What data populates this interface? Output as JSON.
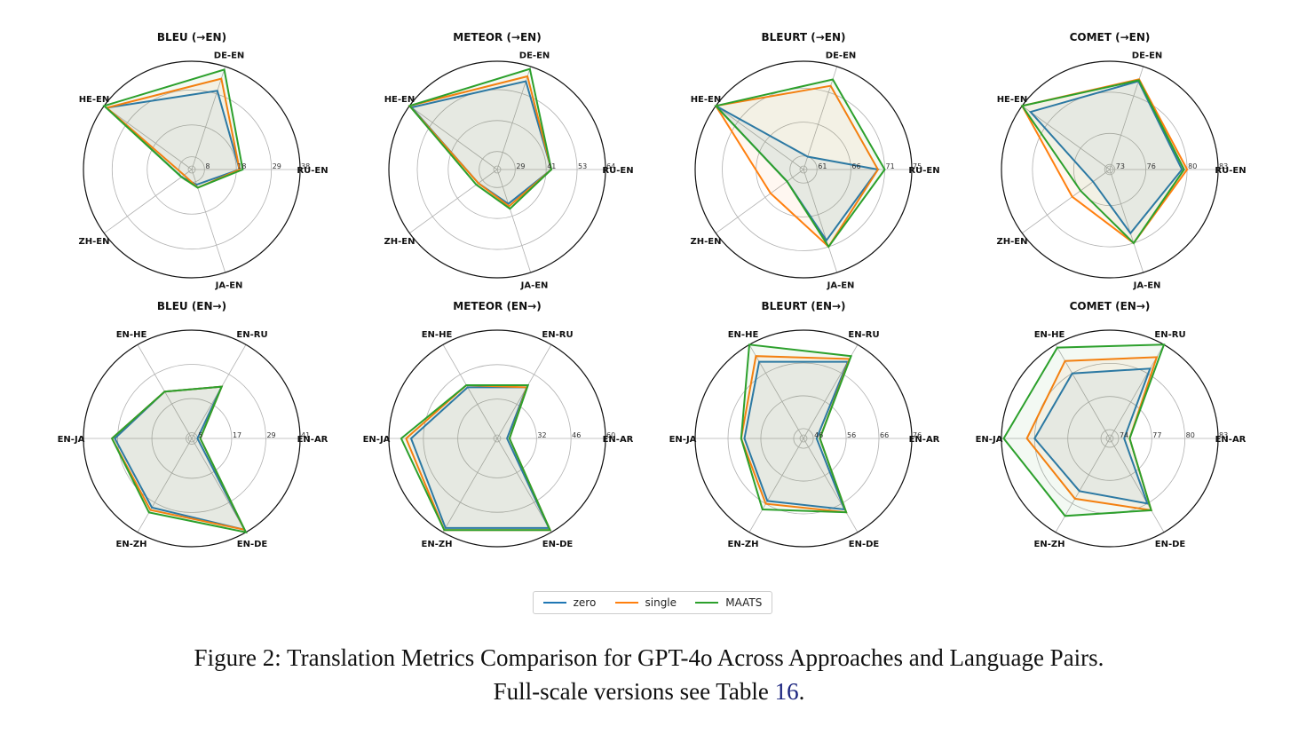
{
  "colors": {
    "zero": "#1f77b4",
    "single": "#ff7f0e",
    "MAATS": "#2ca02c",
    "ref": "#1a237e"
  },
  "legend": {
    "items": [
      "zero",
      "single",
      "MAATS"
    ]
  },
  "caption": {
    "line1": "Figure 2: Translation Metrics Comparison for GPT-4o Across Approaches and Language Pairs.",
    "line2_prefix": "Full-scale versions see Table ",
    "line2_ref": "16",
    "line2_suffix": "."
  },
  "chart_data": [
    {
      "type": "radar",
      "title": "BLEU (→EN)",
      "categories": [
        "RU-EN",
        "DE-EN",
        "HE-EN",
        "ZH-EN",
        "JA-EN"
      ],
      "rmin": 4,
      "rmax": 38,
      "ticks": [
        8,
        18,
        29,
        38
      ],
      "tick_labels": [
        "8",
        "18",
        "29",
        "38"
      ],
      "series": [
        {
          "name": "zero",
          "values": [
            19,
            30,
            37,
            8,
            9
          ]
        },
        {
          "name": "single",
          "values": [
            19,
            34,
            37,
            7,
            10
          ]
        },
        {
          "name": "MAATS",
          "values": [
            20,
            37,
            38,
            8,
            10
          ]
        }
      ]
    },
    {
      "type": "radar",
      "title": "METEOR (→EN)",
      "categories": [
        "RU-EN",
        "DE-EN",
        "HE-EN",
        "ZH-EN",
        "JA-EN"
      ],
      "rmin": 22,
      "rmax": 64,
      "ticks": [
        29,
        41,
        53,
        64
      ],
      "tick_labels": [
        "29",
        "41",
        "53",
        "64"
      ],
      "series": [
        {
          "name": "zero",
          "values": [
            43,
            58,
            63,
            31,
            36
          ]
        },
        {
          "name": "single",
          "values": [
            43,
            60,
            64,
            31,
            37
          ]
        },
        {
          "name": "MAATS",
          "values": [
            43,
            63,
            64,
            32,
            38
          ]
        }
      ]
    },
    {
      "type": "radar",
      "title": "BLEURT (→EN)",
      "categories": [
        "RU-EN",
        "DE-EN",
        "HE-EN",
        "ZH-EN",
        "JA-EN"
      ],
      "rmin": 59,
      "rmax": 75,
      "ticks": [
        61,
        66,
        71,
        75
      ],
      "tick_labels": [
        "61",
        "66",
        "71",
        "75"
      ],
      "series": [
        {
          "name": "zero",
          "values": [
            70,
            61,
            75,
            62,
            70
          ]
        },
        {
          "name": "single",
          "values": [
            70,
            72,
            75,
            65,
            71
          ]
        },
        {
          "name": "MAATS",
          "values": [
            71,
            73,
            75,
            62,
            71
          ]
        }
      ]
    },
    {
      "type": "radar",
      "title": "COMET (→EN)",
      "categories": [
        "RU-EN",
        "DE-EN",
        "HE-EN",
        "ZH-EN",
        "JA-EN"
      ],
      "rmin": 72.5,
      "rmax": 83,
      "ticks": [
        73,
        76,
        80,
        83
      ],
      "tick_labels": [
        "73",
        "76",
        "80",
        "83"
      ],
      "series": [
        {
          "name": "zero",
          "values": [
            79.5,
            81.5,
            82,
            74.5,
            79
          ]
        },
        {
          "name": "single",
          "values": [
            80,
            81.7,
            83,
            77,
            80
          ]
        },
        {
          "name": "MAATS",
          "values": [
            79.7,
            81.6,
            83,
            76,
            80
          ]
        }
      ]
    },
    {
      "type": "radar",
      "title": "BLEU (EN→)",
      "categories": [
        "EN-AR",
        "EN-RU",
        "EN-HE",
        "EN-JA",
        "EN-ZH",
        "EN-DE"
      ],
      "rmin": 3,
      "rmax": 41,
      "ticks": [
        5,
        17,
        29,
        41
      ],
      "tick_labels": [
        "5",
        "17",
        "29",
        "41"
      ],
      "series": [
        {
          "name": "zero",
          "values": [
            5,
            24,
            22,
            30,
            31,
            40
          ]
        },
        {
          "name": "single",
          "values": [
            6,
            24,
            22,
            31,
            32,
            40
          ]
        },
        {
          "name": "MAATS",
          "values": [
            6,
            24,
            22,
            31,
            33,
            41
          ]
        }
      ]
    },
    {
      "type": "radar",
      "title": "METEOR (EN→)",
      "categories": [
        "EN-AR",
        "EN-RU",
        "EN-HE",
        "EN-JA",
        "EN-ZH",
        "EN-DE"
      ],
      "rmin": 16,
      "rmax": 60,
      "ticks": [
        32,
        46,
        60
      ],
      "tick_labels": [
        "32",
        "46",
        "60"
      ],
      "series": [
        {
          "name": "zero",
          "values": [
            20,
            40,
            40,
            51,
            58,
            58
          ]
        },
        {
          "name": "single",
          "values": [
            21,
            40,
            41,
            53,
            59,
            59
          ]
        },
        {
          "name": "MAATS",
          "values": [
            21,
            41,
            41,
            55,
            59,
            59
          ]
        }
      ]
    },
    {
      "type": "radar",
      "title": "BLEURT (EN→)",
      "categories": [
        "EN-AR",
        "EN-RU",
        "EN-HE",
        "EN-JA",
        "EN-ZH",
        "EN-DE"
      ],
      "rmin": 43,
      "rmax": 76,
      "ticks": [
        46,
        56,
        66,
        76
      ],
      "tick_labels": [
        "46",
        "56",
        "66",
        "76"
      ],
      "series": [
        {
          "name": "zero",
          "values": [
            47,
            70,
            70,
            61,
            65,
            68
          ]
        },
        {
          "name": "single",
          "values": [
            48,
            71,
            72,
            62,
            66,
            69
          ]
        },
        {
          "name": "MAATS",
          "values": [
            48,
            72,
            76,
            62,
            68,
            69
          ]
        }
      ]
    },
    {
      "type": "radar",
      "title": "COMET (EN→)",
      "categories": [
        "EN-AR",
        "EN-RU",
        "EN-HE",
        "EN-JA",
        "EN-ZH",
        "EN-DE"
      ],
      "rmin": 73.2,
      "rmax": 83,
      "ticks": [
        74,
        77,
        80,
        83
      ],
      "tick_labels": [
        "74",
        "77",
        "80",
        "83"
      ],
      "series": [
        {
          "name": "zero",
          "values": [
            74.5,
            80.5,
            80,
            80,
            78.7,
            80
          ]
        },
        {
          "name": "single",
          "values": [
            75,
            81.7,
            81.3,
            80.7,
            79.5,
            80.7
          ]
        },
        {
          "name": "MAATS",
          "values": [
            75,
            83,
            82.7,
            82.8,
            81.3,
            80.7
          ]
        }
      ]
    }
  ]
}
